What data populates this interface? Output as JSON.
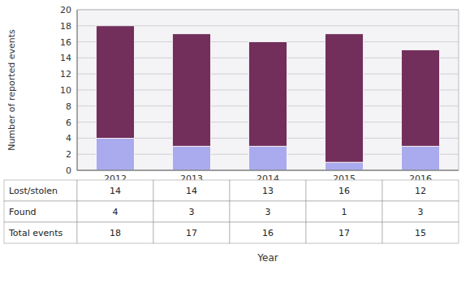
{
  "chart_data": {
    "type": "bar",
    "stacked": true,
    "grid": true,
    "categories": [
      "2012",
      "2013",
      "2014",
      "2015",
      "2016"
    ],
    "series": [
      {
        "name": "Found",
        "color": "#AAAAEE",
        "values": [
          4,
          3,
          3,
          1,
          3
        ]
      },
      {
        "name": "Lost/stolen",
        "color": "#722F5B",
        "values": [
          14,
          14,
          13,
          16,
          12
        ]
      }
    ],
    "total_events": {
      "name": "Total events",
      "values": [
        18,
        17,
        16,
        17,
        15
      ]
    },
    "ylim": [
      0,
      20
    ],
    "yticks": [
      0,
      2,
      4,
      6,
      8,
      10,
      12,
      14,
      16,
      18,
      20
    ],
    "ylabel": "Number of reported events",
    "xlabel": "Year"
  }
}
